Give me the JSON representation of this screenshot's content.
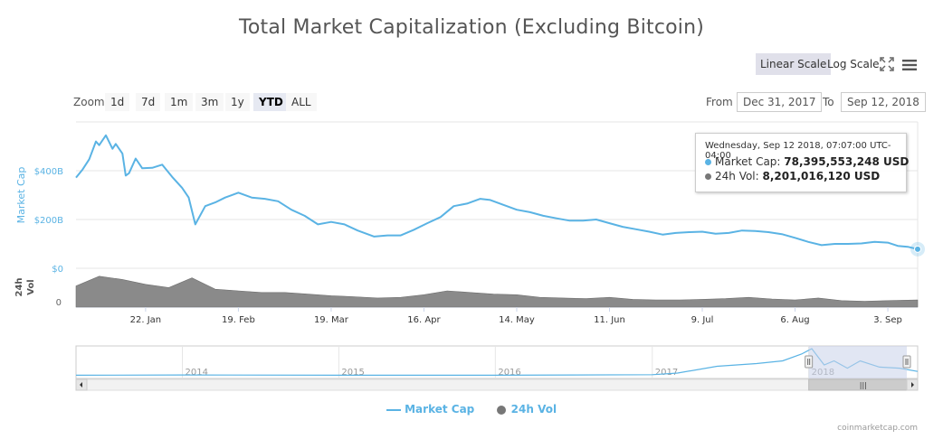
{
  "title": "Total Market Capitalization (Excluding Bitcoin)",
  "scale_buttons": {
    "linear": "Linear Scale",
    "log": "Log Scale",
    "selected": "linear"
  },
  "zoom": {
    "label": "Zoom",
    "buttons": [
      "1d",
      "7d",
      "1m",
      "3m",
      "1y",
      "YTD",
      "ALL"
    ],
    "active": "YTD"
  },
  "range": {
    "from_label": "From",
    "from_value": "Dec 31, 2017",
    "to_label": "To",
    "to_value": "Sep 12, 2018"
  },
  "tooltip": {
    "header": "Wednesday, Sep 12 2018, 07:07:00 UTC-04:00",
    "market_cap_label": "Market Cap:",
    "market_cap_value": "78,395,553,248 USD",
    "vol_label": "24h Vol:",
    "vol_value": "8,201,016,120 USD"
  },
  "legend": {
    "market_cap": "Market Cap",
    "vol": "24h Vol"
  },
  "credit": "coinmarketcap.com",
  "colors": {
    "market_cap": "#5ab3e4",
    "volume": "#777777",
    "navigator_mask": "#c9d2ea"
  },
  "chart_data": {
    "type": "line",
    "x_axis": {
      "range": [
        "2018-01-01",
        "2018-09-12"
      ],
      "tick_labels": [
        "22. Jan",
        "19. Feb",
        "19. Mar",
        "16. Apr",
        "14. May",
        "11. Jun",
        "9. Jul",
        "6. Aug",
        "3. Sep"
      ],
      "tick_dates": [
        "2018-01-22",
        "2018-02-19",
        "2018-03-19",
        "2018-04-16",
        "2018-05-14",
        "2018-06-11",
        "2018-07-09",
        "2018-08-06",
        "2018-09-03"
      ]
    },
    "y_axis_market_cap": {
      "label": "Market Cap",
      "tick_labels": [
        "$0",
        "$200B",
        "$400B"
      ],
      "tick_values": [
        0,
        200,
        400
      ],
      "range": [
        0,
        600
      ],
      "unit": "billion USD"
    },
    "y_axis_volume": {
      "label": "24h Vol",
      "tick_labels": [
        "0"
      ]
    },
    "series": [
      {
        "name": "Market Cap",
        "unit": "billion USD",
        "points": [
          [
            "2018-01-01",
            372
          ],
          [
            "2018-01-03",
            405
          ],
          [
            "2018-01-05",
            447
          ],
          [
            "2018-01-07",
            520
          ],
          [
            "2018-01-08",
            505
          ],
          [
            "2018-01-10",
            545
          ],
          [
            "2018-01-12",
            490
          ],
          [
            "2018-01-13",
            510
          ],
          [
            "2018-01-15",
            470
          ],
          [
            "2018-01-16",
            380
          ],
          [
            "2018-01-17",
            390
          ],
          [
            "2018-01-19",
            450
          ],
          [
            "2018-01-21",
            410
          ],
          [
            "2018-01-24",
            412
          ],
          [
            "2018-01-27",
            425
          ],
          [
            "2018-01-30",
            375
          ],
          [
            "2018-02-02",
            330
          ],
          [
            "2018-02-04",
            290
          ],
          [
            "2018-02-06",
            180
          ],
          [
            "2018-02-09",
            255
          ],
          [
            "2018-02-12",
            270
          ],
          [
            "2018-02-15",
            290
          ],
          [
            "2018-02-19",
            310
          ],
          [
            "2018-02-23",
            290
          ],
          [
            "2018-02-27",
            285
          ],
          [
            "2018-03-03",
            275
          ],
          [
            "2018-03-07",
            240
          ],
          [
            "2018-03-11",
            215
          ],
          [
            "2018-03-15",
            180
          ],
          [
            "2018-03-19",
            190
          ],
          [
            "2018-03-23",
            180
          ],
          [
            "2018-03-27",
            155
          ],
          [
            "2018-04-01",
            130
          ],
          [
            "2018-04-05",
            135
          ],
          [
            "2018-04-09",
            135
          ],
          [
            "2018-04-13",
            158
          ],
          [
            "2018-04-17",
            185
          ],
          [
            "2018-04-21",
            210
          ],
          [
            "2018-04-25",
            255
          ],
          [
            "2018-04-29",
            265
          ],
          [
            "2018-05-03",
            285
          ],
          [
            "2018-05-06",
            280
          ],
          [
            "2018-05-10",
            260
          ],
          [
            "2018-05-14",
            240
          ],
          [
            "2018-05-18",
            230
          ],
          [
            "2018-05-22",
            215
          ],
          [
            "2018-05-26",
            205
          ],
          [
            "2018-05-30",
            195
          ],
          [
            "2018-06-03",
            195
          ],
          [
            "2018-06-07",
            200
          ],
          [
            "2018-06-11",
            185
          ],
          [
            "2018-06-15",
            170
          ],
          [
            "2018-06-19",
            160
          ],
          [
            "2018-06-23",
            150
          ],
          [
            "2018-06-27",
            138
          ],
          [
            "2018-07-01",
            145
          ],
          [
            "2018-07-05",
            148
          ],
          [
            "2018-07-09",
            150
          ],
          [
            "2018-07-13",
            142
          ],
          [
            "2018-07-17",
            145
          ],
          [
            "2018-07-21",
            155
          ],
          [
            "2018-07-25",
            153
          ],
          [
            "2018-07-29",
            148
          ],
          [
            "2018-08-02",
            140
          ],
          [
            "2018-08-06",
            125
          ],
          [
            "2018-08-10",
            108
          ],
          [
            "2018-08-14",
            95
          ],
          [
            "2018-08-18",
            100
          ],
          [
            "2018-08-22",
            100
          ],
          [
            "2018-08-26",
            102
          ],
          [
            "2018-08-30",
            108
          ],
          [
            "2018-09-03",
            105
          ],
          [
            "2018-09-06",
            92
          ],
          [
            "2018-09-09",
            88
          ],
          [
            "2018-09-12",
            78.4
          ]
        ]
      },
      {
        "name": "24h Vol",
        "unit": "relative",
        "points": [
          [
            "2018-01-01",
            0.65
          ],
          [
            "2018-01-08",
            0.95
          ],
          [
            "2018-01-15",
            0.85
          ],
          [
            "2018-01-22",
            0.7
          ],
          [
            "2018-01-29",
            0.6
          ],
          [
            "2018-02-05",
            0.9
          ],
          [
            "2018-02-12",
            0.55
          ],
          [
            "2018-02-19",
            0.5
          ],
          [
            "2018-02-26",
            0.45
          ],
          [
            "2018-03-05",
            0.45
          ],
          [
            "2018-03-12",
            0.4
          ],
          [
            "2018-03-19",
            0.35
          ],
          [
            "2018-03-26",
            0.32
          ],
          [
            "2018-04-02",
            0.28
          ],
          [
            "2018-04-09",
            0.3
          ],
          [
            "2018-04-16",
            0.38
          ],
          [
            "2018-04-23",
            0.5
          ],
          [
            "2018-04-30",
            0.45
          ],
          [
            "2018-05-07",
            0.4
          ],
          [
            "2018-05-14",
            0.38
          ],
          [
            "2018-05-21",
            0.3
          ],
          [
            "2018-05-28",
            0.28
          ],
          [
            "2018-06-04",
            0.26
          ],
          [
            "2018-06-11",
            0.3
          ],
          [
            "2018-06-18",
            0.24
          ],
          [
            "2018-06-25",
            0.22
          ],
          [
            "2018-07-02",
            0.22
          ],
          [
            "2018-07-09",
            0.24
          ],
          [
            "2018-07-16",
            0.26
          ],
          [
            "2018-07-23",
            0.3
          ],
          [
            "2018-07-30",
            0.25
          ],
          [
            "2018-08-06",
            0.22
          ],
          [
            "2018-08-13",
            0.28
          ],
          [
            "2018-08-20",
            0.2
          ],
          [
            "2018-08-27",
            0.18
          ],
          [
            "2018-09-03",
            0.2
          ],
          [
            "2018-09-12",
            0.22
          ]
        ]
      }
    ],
    "tooltip_point": {
      "date": "2018-09-12",
      "market_cap_usd": 78395553248,
      "volume_usd": 8201016120
    },
    "grid": true,
    "legend_position": "bottom-center"
  },
  "navigator": {
    "year_labels": [
      "2014",
      "2015",
      "2016",
      "2017",
      "2018"
    ],
    "series": [
      [
        "2013-04-28",
        0.02
      ],
      [
        "2014-01-01",
        0.03
      ],
      [
        "2015-01-01",
        0.02
      ],
      [
        "2016-01-01",
        0.02
      ],
      [
        "2017-01-01",
        0.04
      ],
      [
        "2017-03-01",
        0.1
      ],
      [
        "2017-06-01",
        0.35
      ],
      [
        "2017-09-01",
        0.45
      ],
      [
        "2017-11-01",
        0.55
      ],
      [
        "2017-12-15",
        0.8
      ],
      [
        "2018-01-08",
        1.0
      ],
      [
        "2018-02-06",
        0.4
      ],
      [
        "2018-03-01",
        0.55
      ],
      [
        "2018-04-01",
        0.28
      ],
      [
        "2018-05-01",
        0.55
      ],
      [
        "2018-06-15",
        0.32
      ],
      [
        "2018-08-01",
        0.28
      ],
      [
        "2018-09-12",
        0.16
      ]
    ],
    "range": [
      "2013-04-28",
      "2018-09-12"
    ],
    "selected_range": [
      "2018-01-01",
      "2018-09-12"
    ],
    "scrollbar_grip": "|||"
  }
}
